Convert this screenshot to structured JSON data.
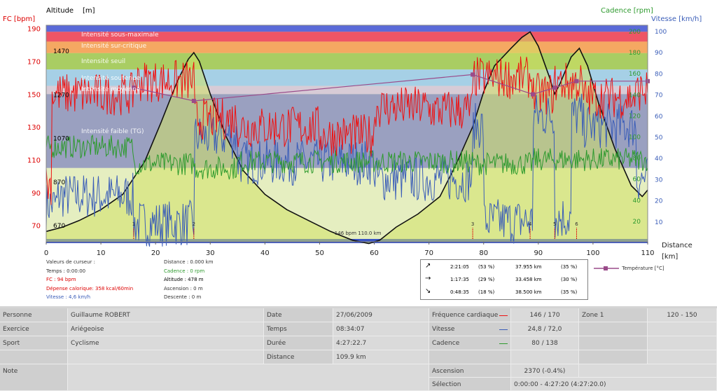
{
  "axes": {
    "fc_title": "FC [bpm]",
    "altitude_title": "Altitude",
    "altitude_unit": "[m]",
    "cadence_title": "Cadence [rpm]",
    "speed_title": "Vitesse [km/h]",
    "distance_title": "Distance",
    "distance_unit": "[km]"
  },
  "colors": {
    "fc": "#ee1111",
    "cadence": "#2e9a2e",
    "speed": "#3a5db8",
    "altitude": "#111111",
    "temperature": "#9a4b8a"
  },
  "chart_data": {
    "type": "line",
    "x_label": "Distance",
    "x_unit": "[km]",
    "xlim": [
      0,
      110
    ],
    "x_ticks": [
      0,
      10,
      20,
      30,
      40,
      50,
      60,
      70,
      80,
      90,
      100,
      110
    ],
    "fc_axis": {
      "label": "FC [bpm]",
      "ylim": [
        60,
        192
      ],
      "ticks": [
        70,
        90,
        110,
        130,
        150,
        170,
        190
      ]
    },
    "altitude_axis": {
      "label": "Altitude [m]",
      "ticks": [
        670,
        870,
        1070,
        1270,
        1470
      ]
    },
    "cadence_axis": {
      "label": "Cadence [rpm]",
      "ticks": [
        20,
        40,
        60,
        80,
        100,
        120,
        140,
        160,
        180,
        200
      ]
    },
    "speed_axis": {
      "label": "Vitesse [km/h]",
      "ticks": [
        10,
        20,
        30,
        40,
        50,
        60,
        70,
        80,
        90,
        100
      ]
    },
    "zones": [
      {
        "name": "Intensité sous-maximale",
        "from": 182,
        "to": 188,
        "color": "#ee5565"
      },
      {
        "name": "Intensité sur-critique",
        "from": 175,
        "to": 182,
        "color": "#f5a862"
      },
      {
        "name": "Intensité seuil",
        "from": 165,
        "to": 175,
        "color": "#a9cd63"
      },
      {
        "name": "Intensité soutenue",
        "from": 155,
        "to": 165,
        "color": "#a6d0e6"
      },
      {
        "name": "Intensité moyenne",
        "from": 150,
        "to": 155,
        "color": "#d7cbd6"
      },
      {
        "name": "Intensité faible (TG)",
        "from": 105,
        "to": 150,
        "color": "#9aa0c0"
      }
    ],
    "series": [
      {
        "name": "Altitude",
        "x": [
          0,
          3,
          6,
          10,
          14,
          18,
          21,
          24,
          26,
          27,
          28,
          30,
          33,
          36,
          40,
          44,
          48,
          52,
          56,
          59,
          61,
          64,
          68,
          72,
          75,
          78,
          80,
          82,
          85,
          87,
          88.5,
          90,
          92,
          93,
          94,
          96,
          97.5,
          99,
          101,
          104,
          107,
          109,
          110
        ],
        "values": [
          640,
          660,
          690,
          740,
          810,
          960,
          1140,
          1330,
          1430,
          1460,
          1420,
          1270,
          1070,
          920,
          810,
          740,
          690,
          640,
          600,
          585,
          600,
          660,
          720,
          800,
          950,
          1120,
          1280,
          1400,
          1480,
          1530,
          1555,
          1490,
          1350,
          1270,
          1320,
          1440,
          1480,
          1400,
          1230,
          1020,
          850,
          800,
          830
        ]
      },
      {
        "name": "Température",
        "x": [
          16,
          27,
          78,
          89,
          93,
          97,
          110
        ],
        "values": [
          22,
          20,
          24,
          21,
          22,
          23,
          23
        ]
      }
    ],
    "noisy_series": [
      "FC",
      "Cadence",
      "Vitesse"
    ],
    "markers": [
      "1",
      "2",
      "3",
      "4",
      "5",
      "6"
    ],
    "annotation": "146 bpm  110.0 km"
  },
  "cursor_values": {
    "heading": "Valeurs de curseur :",
    "time": "Temps : 0:00:00",
    "fc": "FC : 94 bpm",
    "energy": "Dépense calorique: 358 kcal/60min",
    "speed": "Vitesse : 4,6 km/h",
    "distance": "Distance : 0.000 km",
    "cadence": "Cadence : 0 rpm",
    "altitude": "Altitude : 478 m",
    "ascent": "Ascension : 0 m",
    "descent": "Descente : 0 m"
  },
  "stats": [
    {
      "icon": "↗",
      "time": "2:21:05",
      "time_pct": "(53 %)",
      "dist": "37.955 km",
      "dist_pct": "(35 %)"
    },
    {
      "icon": "→",
      "time": "1:17:35",
      "time_pct": "(29 %)",
      "dist": "33.458 km",
      "dist_pct": "(30 %)"
    },
    {
      "icon": "↘",
      "time": "0:48:35",
      "time_pct": "(18 %)",
      "dist": "38.500 km",
      "dist_pct": "(35 %)"
    }
  ],
  "temp_legend": "Température [°C]",
  "info": {
    "person_label": "Personne",
    "person": "Guillaume ROBERT",
    "exercise_label": "Exercice",
    "exercise": "Ariégeoise",
    "sport_label": "Sport",
    "sport": "Cyclisme",
    "note_label": "Note",
    "date_label": "Date",
    "date": "27/06/2009",
    "time_label": "Temps",
    "time": "08:34:07",
    "duration_label": "Durée",
    "duration": "4:27:22.7",
    "distance_label": "Distance",
    "distance": "109.9 km",
    "hr_label": "Fréquence cardiaque",
    "hr": "146 / 170",
    "speed_label": "Vitesse",
    "speed": "24,8 / 72,0",
    "cadence_label": "Cadence",
    "cadence": "80 / 138",
    "ascent_label": "Ascension",
    "ascent": "2370 (-0.4%)",
    "selection_label": "Sélection",
    "selection": "0:00:00 - 4:27:20 (4:27:20.0)",
    "zone_label": "Zone 1",
    "zone": "120 - 150"
  }
}
